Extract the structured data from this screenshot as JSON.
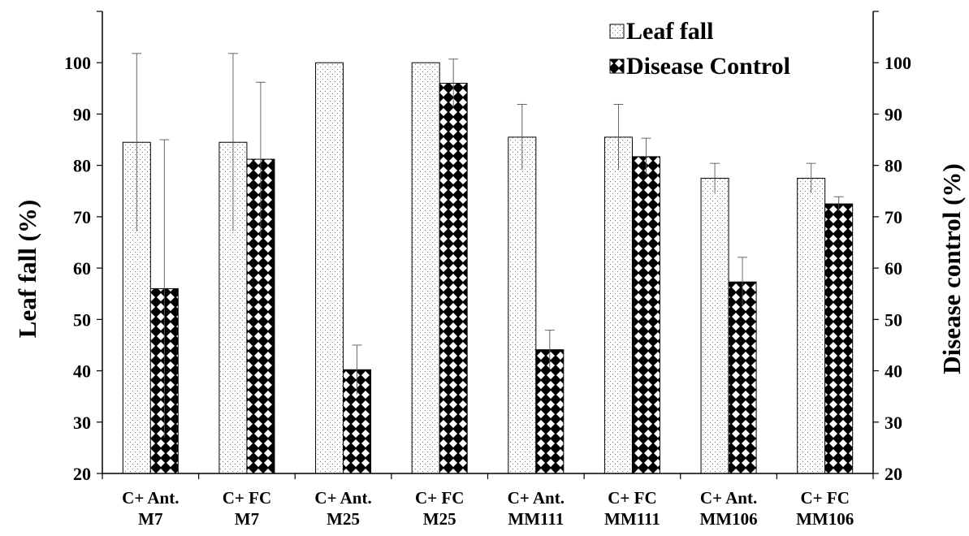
{
  "chart_data": {
    "type": "bar",
    "title": "",
    "ylabel": "Leaf fall (%)",
    "ylabel_right": "Disease control (%)",
    "xlabel": "",
    "ylim": [
      20,
      110
    ],
    "yticks": [
      20,
      30,
      40,
      50,
      60,
      70,
      80,
      90,
      100
    ],
    "ylim_right": [
      20,
      110
    ],
    "yticks_right": [
      20,
      30,
      40,
      50,
      60,
      70,
      80,
      90,
      100
    ],
    "grid": false,
    "legend_position": "top-right",
    "categories": [
      {
        "line1": "C+    Ant.",
        "line2": "M7"
      },
      {
        "line1": "C+    FC",
        "line2": "M7"
      },
      {
        "line1": "C+    Ant.",
        "line2": "M25"
      },
      {
        "line1": "C+    FC",
        "line2": "M25"
      },
      {
        "line1": "C+    Ant.",
        "line2": "MM111"
      },
      {
        "line1": "C+  FC",
        "line2": "MM111"
      },
      {
        "line1": "C+  Ant.",
        "line2": "MM106"
      },
      {
        "line1": "C+  FC",
        "line2": "MM106"
      }
    ],
    "series": [
      {
        "name": "Leaf fall",
        "pattern": "dotted",
        "values": [
          84.5,
          84.5,
          100,
          100,
          85.5,
          85.5,
          77.5,
          77.5
        ],
        "error": [
          17.3,
          17.3,
          0,
          0,
          6.4,
          6.4,
          2.9,
          2.9
        ]
      },
      {
        "name": "Disease Control",
        "pattern": "checkered",
        "values": [
          56,
          81.2,
          40.2,
          96,
          44.1,
          81.7,
          57.3,
          72.5
        ],
        "error": [
          29,
          15,
          4.8,
          4.7,
          3.8,
          3.6,
          4.8,
          1.4
        ]
      }
    ]
  }
}
